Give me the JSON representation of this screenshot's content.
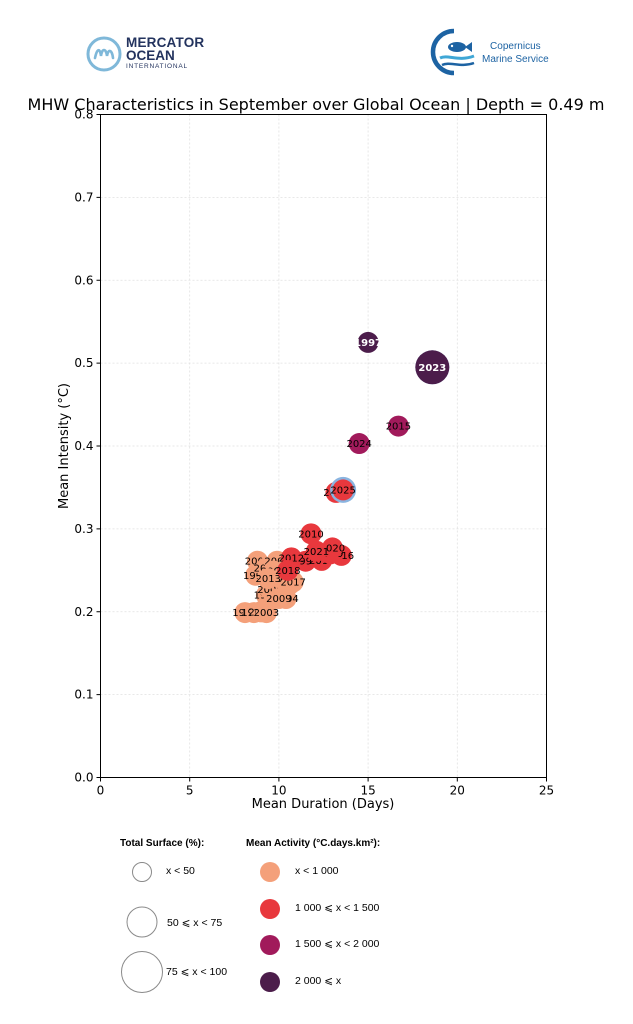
{
  "logos": {
    "mercator": {
      "line1": "MERCATOR",
      "line2": "OCEAN",
      "line3": "INTERNATIONAL"
    },
    "copernicus": {
      "line1": "Copernicus",
      "line2": "Marine Service"
    }
  },
  "colors": {
    "lt1000": "#f4a07a",
    "r1000_1500": "#e8383d",
    "r1500_2000": "#a11a5b",
    "ge2000": "#4c1d4b",
    "total_surface_ring": "#8ab4e0"
  },
  "chart_data": {
    "type": "scatter",
    "title": "MHW Characteristics in September over Global Ocean | Depth = 0.49 m",
    "xlabel": "Mean Duration (Days)",
    "ylabel": "Mean Intensity (°C)",
    "xlim": [
      0,
      25
    ],
    "ylim": [
      0,
      0.8
    ],
    "xticks": [
      "0",
      "5",
      "10",
      "15",
      "20",
      "25"
    ],
    "yticks": [
      "0.0",
      "0.1",
      "0.2",
      "0.3",
      "0.4",
      "0.5",
      "0.6",
      "0.7",
      "0.8"
    ],
    "grid": true,
    "points": [
      {
        "year": "1993",
        "x": 8.1,
        "y": 0.199,
        "activity": "lt1000",
        "surface": "lt50"
      },
      {
        "year": "1994",
        "x": 9.3,
        "y": 0.22,
        "activity": "lt1000",
        "surface": "lt50"
      },
      {
        "year": "1995",
        "x": 8.7,
        "y": 0.244,
        "activity": "lt1000",
        "surface": "lt50"
      },
      {
        "year": "1996",
        "x": 8.6,
        "y": 0.199,
        "activity": "lt1000",
        "surface": "lt50"
      },
      {
        "year": "1997",
        "x": 15.0,
        "y": 0.525,
        "activity": "ge2000",
        "surface": "lt50"
      },
      {
        "year": "1998",
        "x": 11.5,
        "y": 0.261,
        "activity": "r1000_1500",
        "surface": "lt50"
      },
      {
        "year": "1999",
        "x": 9.0,
        "y": 0.2,
        "activity": "lt1000",
        "surface": "lt50"
      },
      {
        "year": "2000",
        "x": 8.8,
        "y": 0.261,
        "activity": "lt1000",
        "surface": "lt50"
      },
      {
        "year": "2001",
        "x": 9.3,
        "y": 0.253,
        "activity": "lt1000",
        "surface": "lt50"
      },
      {
        "year": "2002",
        "x": 9.0,
        "y": 0.2,
        "activity": "lt1000",
        "surface": "lt50"
      },
      {
        "year": "2003",
        "x": 9.3,
        "y": 0.199,
        "activity": "lt1000",
        "surface": "lt50"
      },
      {
        "year": "2004",
        "x": 10.4,
        "y": 0.216,
        "activity": "lt1000",
        "surface": "lt50"
      },
      {
        "year": "2005",
        "x": 10.6,
        "y": 0.233,
        "activity": "lt1000",
        "surface": "lt50"
      },
      {
        "year": "2006",
        "x": 9.5,
        "y": 0.227,
        "activity": "lt1000",
        "surface": "lt50"
      },
      {
        "year": "2007",
        "x": 9.9,
        "y": 0.261,
        "activity": "lt1000",
        "surface": "lt50"
      },
      {
        "year": "2008",
        "x": 9.7,
        "y": 0.249,
        "activity": "lt1000",
        "surface": "lt50"
      },
      {
        "year": "2009",
        "x": 10.0,
        "y": 0.216,
        "activity": "lt1000",
        "surface": "lt50"
      },
      {
        "year": "2010",
        "x": 11.8,
        "y": 0.294,
        "activity": "r1000_1500",
        "surface": "lt50"
      },
      {
        "year": "2011",
        "x": 10.2,
        "y": 0.24,
        "activity": "lt1000",
        "surface": "lt50"
      },
      {
        "year": "2012",
        "x": 10.7,
        "y": 0.265,
        "activity": "r1000_1500",
        "surface": "lt50"
      },
      {
        "year": "2013",
        "x": 9.4,
        "y": 0.24,
        "activity": "lt1000",
        "surface": "lt50"
      },
      {
        "year": "2014",
        "x": 12.4,
        "y": 0.262,
        "activity": "r1000_1500",
        "surface": "lt50"
      },
      {
        "year": "2015",
        "x": 16.7,
        "y": 0.424,
        "activity": "r1500_2000",
        "surface": "lt50"
      },
      {
        "year": "2016",
        "x": 13.5,
        "y": 0.268,
        "activity": "r1000_1500",
        "surface": "lt50"
      },
      {
        "year": "2017",
        "x": 10.8,
        "y": 0.236,
        "activity": "lt1000",
        "surface": "lt50"
      },
      {
        "year": "2018",
        "x": 10.5,
        "y": 0.25,
        "activity": "r1000_1500",
        "surface": "lt50"
      },
      {
        "year": "2019",
        "x": 12.9,
        "y": 0.27,
        "activity": "r1000_1500",
        "surface": "lt50"
      },
      {
        "year": "2020",
        "x": 13.0,
        "y": 0.277,
        "activity": "r1000_1500",
        "surface": "lt50"
      },
      {
        "year": "2021",
        "x": 12.1,
        "y": 0.273,
        "activity": "r1000_1500",
        "surface": "lt50"
      },
      {
        "year": "2022",
        "x": 13.2,
        "y": 0.344,
        "activity": "r1000_1500",
        "surface": "lt50"
      },
      {
        "year": "2023",
        "x": 18.6,
        "y": 0.495,
        "activity": "ge2000",
        "surface": "75_100"
      },
      {
        "year": "2024",
        "x": 14.5,
        "y": 0.403,
        "activity": "r1500_2000",
        "surface": "lt50"
      },
      {
        "year": "2025",
        "x": 13.6,
        "y": 0.347,
        "activity": "r1000_1500",
        "surface": "50_75"
      }
    ]
  },
  "legend": {
    "surface_title": "Total Surface (%):",
    "surface_items": [
      {
        "key": "lt50",
        "label": "x < 50"
      },
      {
        "key": "50_75",
        "label": "50 ⩽ x < 75"
      },
      {
        "key": "75_100",
        "label": "75 ⩽ x < 100"
      }
    ],
    "activity_title": "Mean Activity (°C.days.km²):",
    "activity_items": [
      {
        "key": "lt1000",
        "label": "x < 1 000"
      },
      {
        "key": "r1000_1500",
        "label": "1 000 ⩽ x < 1 500"
      },
      {
        "key": "r1500_2000",
        "label": "1 500 ⩽ x < 2 000"
      },
      {
        "key": "ge2000",
        "label": "2 000 ⩽ x"
      }
    ]
  }
}
